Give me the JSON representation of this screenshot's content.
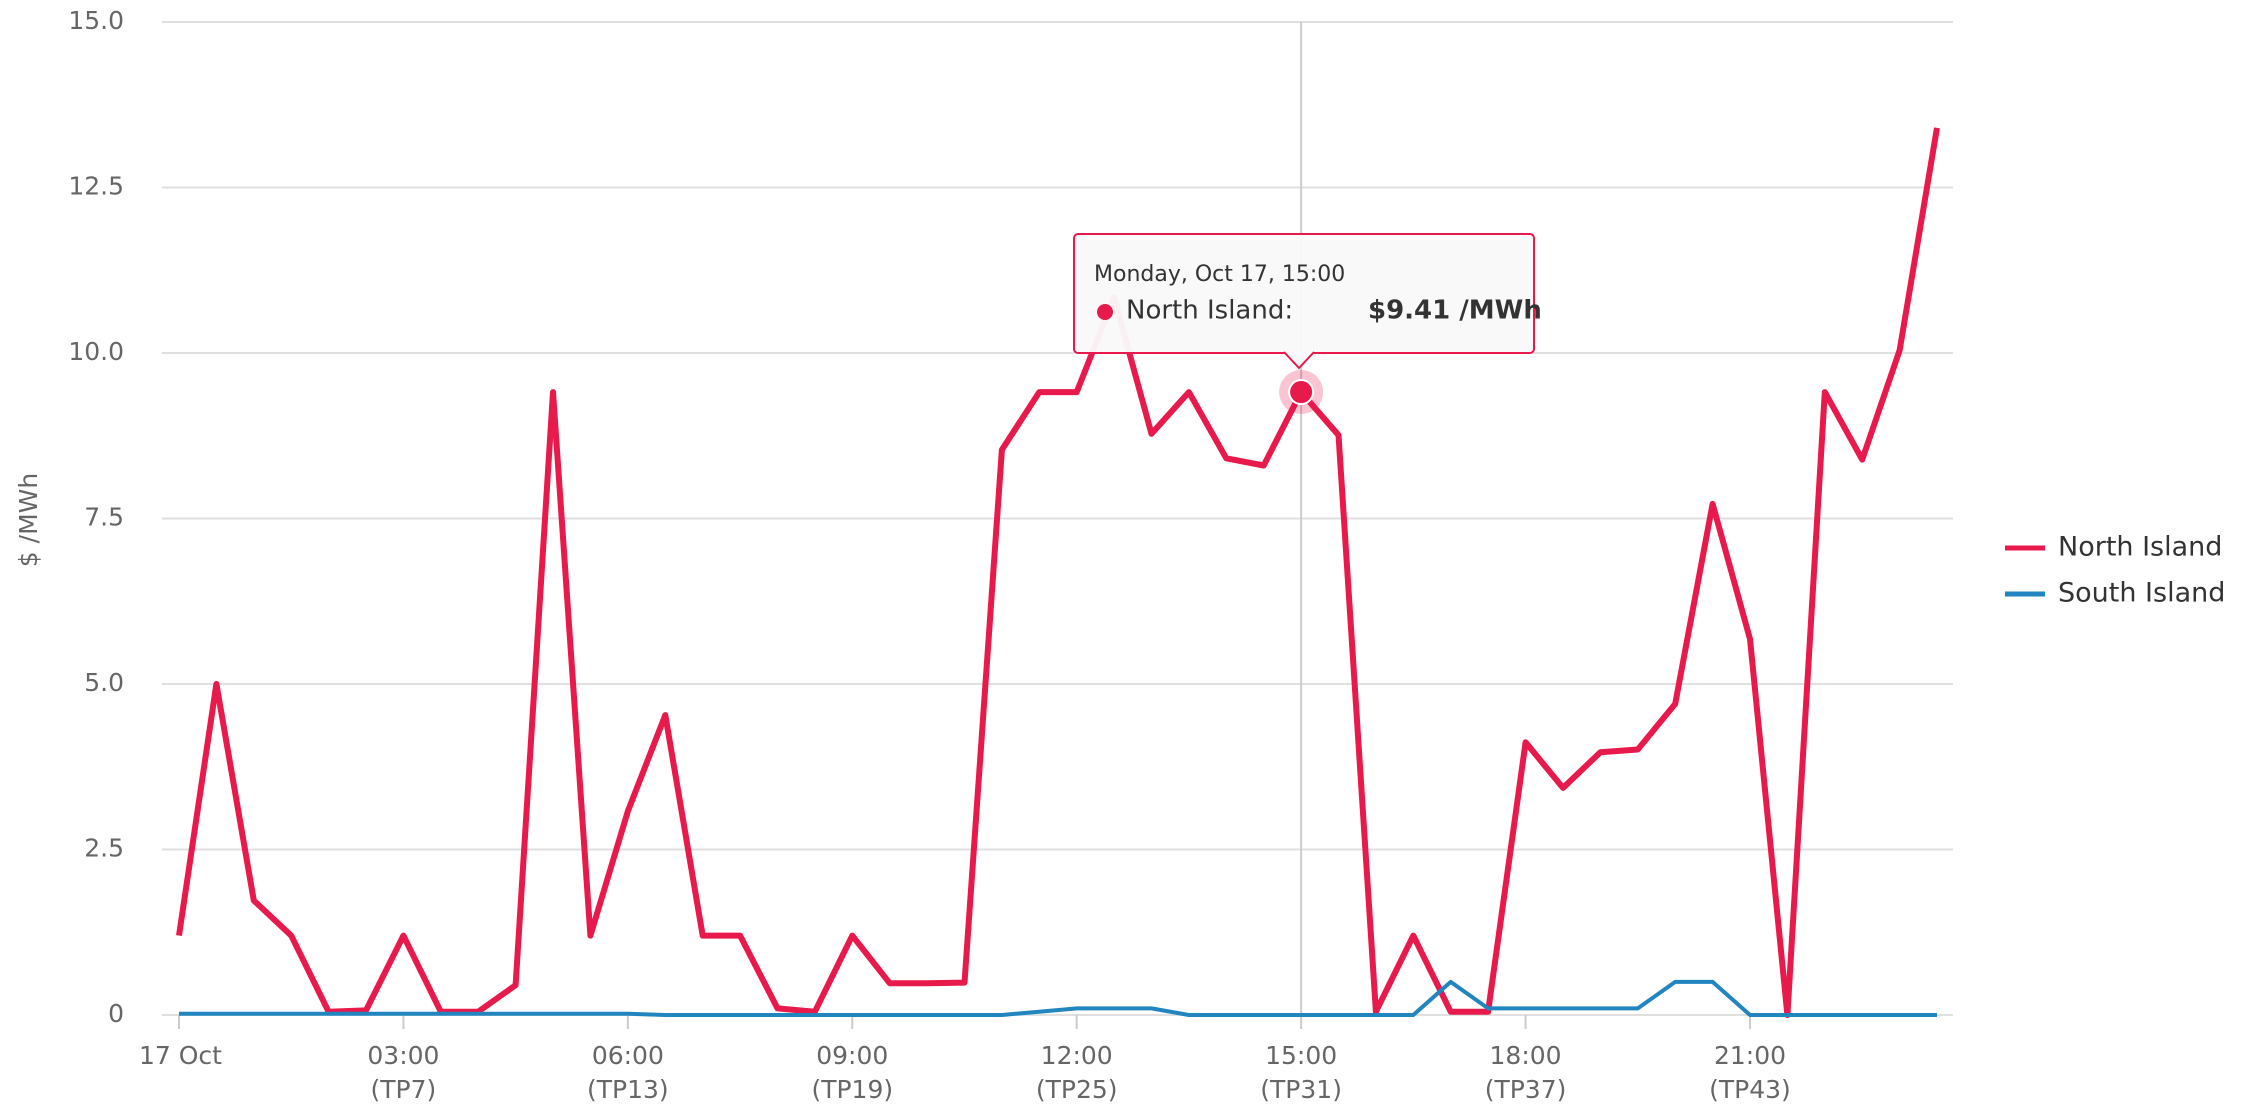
{
  "chart_data": {
    "type": "line",
    "y_label": "$ /MWh",
    "x": [
      0,
      0.5,
      1,
      1.5,
      2,
      2.5,
      3,
      3.5,
      4,
      4.5,
      5,
      5.5,
      6,
      6.5,
      7,
      7.5,
      8,
      8.5,
      9,
      9.5,
      10,
      10.5,
      11,
      11.5,
      12,
      12.5,
      13,
      13.5,
      14,
      14.5,
      15,
      15.5,
      16,
      16.5,
      17,
      17.5,
      18,
      18.5,
      19,
      19.5,
      20,
      20.5,
      21,
      21.5,
      22,
      22.5,
      23,
      23.5
    ],
    "xlim": [
      0,
      23.5
    ],
    "xticks": [
      {
        "value": 0,
        "label": "17 Oct"
      },
      {
        "value": 3,
        "label": "03:00",
        "sublabel": "(TP7)"
      },
      {
        "value": 6,
        "label": "06:00",
        "sublabel": "(TP13)"
      },
      {
        "value": 9,
        "label": "09:00",
        "sublabel": "(TP19)"
      },
      {
        "value": 12,
        "label": "12:00",
        "sublabel": "(TP25)"
      },
      {
        "value": 15,
        "label": "15:00",
        "sublabel": "(TP31)"
      },
      {
        "value": 18,
        "label": "18:00",
        "sublabel": "(TP37)"
      },
      {
        "value": 21,
        "label": "21:00",
        "sublabel": "(TP43)"
      }
    ],
    "ylim": [
      0,
      15
    ],
    "yticks": [
      0,
      {
        "value": 2.5,
        "label": "2.5"
      },
      {
        "value": 5,
        "label": "5.0"
      },
      {
        "value": 7.5,
        "label": "7.5"
      },
      {
        "value": 10,
        "label": "10.0"
      },
      {
        "value": 12.5,
        "label": "12.5"
      },
      {
        "value": 15,
        "label": "15.0"
      }
    ],
    "grid": true,
    "legend": "right",
    "series": [
      {
        "name": "North Island",
        "color": "#e8194b",
        "values": [
          1.2,
          5.0,
          1.73,
          1.2,
          0.05,
          0.07,
          1.2,
          0.05,
          0.05,
          0.45,
          9.41,
          1.2,
          3.08,
          4.53,
          1.2,
          1.2,
          0.1,
          0.05,
          1.2,
          0.48,
          0.48,
          0.49,
          8.54,
          9.41,
          9.41,
          10.84,
          8.78,
          9.41,
          8.41,
          8.3,
          9.41,
          8.76,
          0.05,
          1.2,
          0.05,
          0.05,
          4.12,
          3.43,
          3.97,
          4.01,
          4.7,
          7.72,
          5.68,
          0,
          9.41,
          8.39,
          10.04,
          13.4
        ]
      },
      {
        "name": "South Island",
        "color": "#2185bf",
        "values": [
          0.02,
          0.02,
          0.02,
          0.02,
          0.02,
          0.02,
          0.02,
          0.02,
          0.02,
          0.02,
          0.02,
          0.02,
          0.02,
          0,
          0,
          0,
          0,
          0,
          0,
          0,
          0,
          0,
          0,
          0.05,
          0.1,
          0.1,
          0.1,
          0,
          0,
          0,
          0,
          0,
          0,
          0,
          0.5,
          0.1,
          0.1,
          0.1,
          0.1,
          0.1,
          0.5,
          0.5,
          0,
          0,
          0,
          0,
          0,
          0
        ]
      }
    ],
    "tooltip": {
      "title": "Monday, Oct 17, 15:00",
      "label": "North Island:",
      "value_label": "$9.41 /MWh"
    }
  }
}
